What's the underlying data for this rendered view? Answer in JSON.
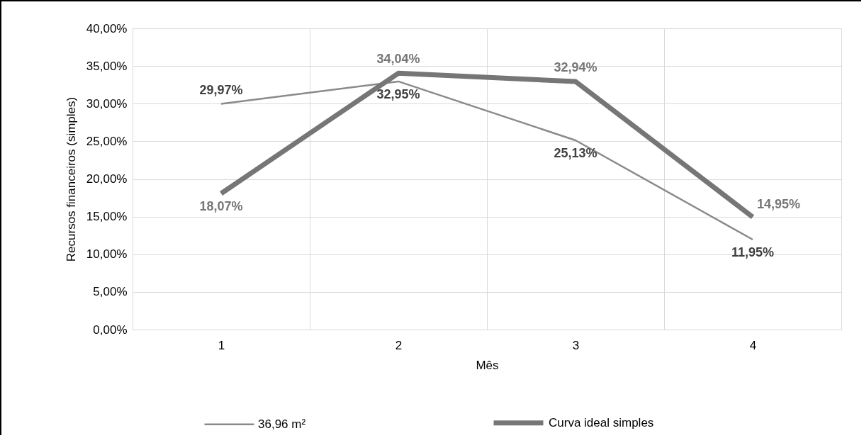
{
  "chart_data": {
    "type": "line",
    "xlabel": "Mês",
    "ylabel": "Recursos financeiros (simples)",
    "categories": [
      "1",
      "2",
      "3",
      "4"
    ],
    "series": [
      {
        "name": "36,96 m²",
        "color": "#8a8a8a",
        "values": [
          29.97,
          32.95,
          25.13,
          11.95
        ],
        "value_labels": [
          "29,97%",
          "32,95%",
          "25,13%",
          "11,95%"
        ]
      },
      {
        "name": "Curva ideal simples",
        "color": "#767676",
        "values": [
          18.07,
          34.04,
          32.94,
          14.95
        ],
        "value_labels": [
          "18,07%",
          "34,04%",
          "32,94%",
          "14,95%"
        ]
      }
    ],
    "ylim": [
      0,
      40
    ],
    "yticks": [
      {
        "value": 0,
        "label": "0,00%"
      },
      {
        "value": 5,
        "label": "5,00%"
      },
      {
        "value": 10,
        "label": "10,00%"
      },
      {
        "value": 15,
        "label": "15,00%"
      },
      {
        "value": 20,
        "label": "20,00%"
      },
      {
        "value": 25,
        "label": "25,00%"
      },
      {
        "value": 30,
        "label": "30,00%"
      },
      {
        "value": 35,
        "label": "35,00%"
      },
      {
        "value": 40,
        "label": "40,00%"
      }
    ],
    "grid": true,
    "legend": "bottom",
    "marker": "none",
    "line_style": "solid"
  }
}
